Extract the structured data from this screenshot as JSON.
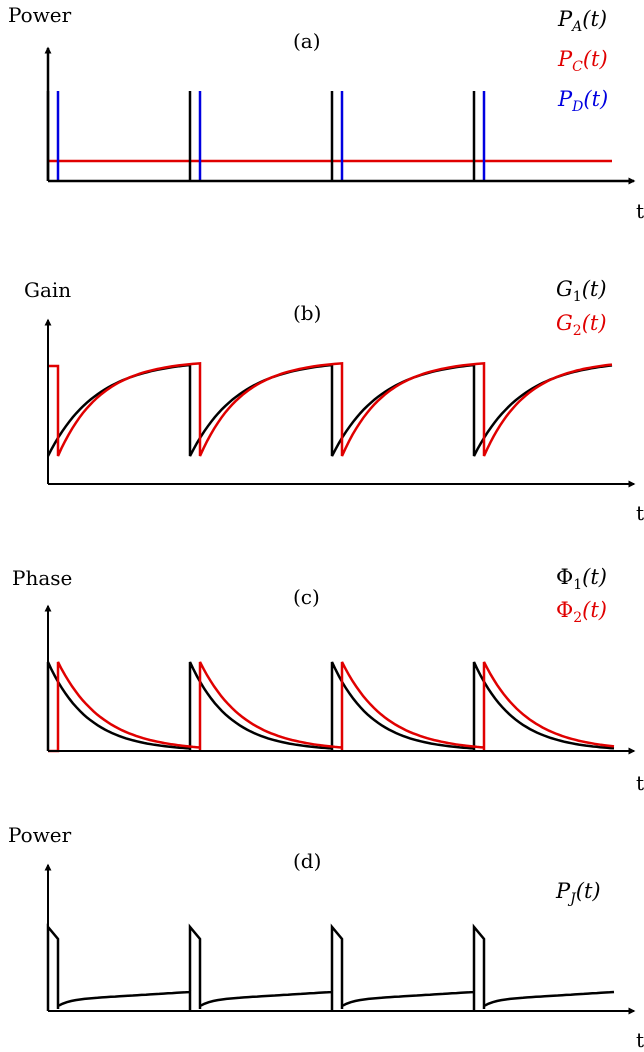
{
  "panels": [
    {
      "id": "a",
      "panel_label": "(a)",
      "y_axis_label": "Power",
      "x_axis_label": "t",
      "legend": [
        {
          "base": "P",
          "sub": "A",
          "arg": "(t)",
          "color": "#000000"
        },
        {
          "base": "P",
          "sub": "C",
          "arg": "(t)",
          "color": "#e00000"
        },
        {
          "base": "P",
          "sub": "D",
          "arg": "(t)",
          "color": "#0000e0"
        }
      ]
    },
    {
      "id": "b",
      "panel_label": "(b)",
      "y_axis_label": "Gain",
      "x_axis_label": "t",
      "legend": [
        {
          "base": "G",
          "sub": "1",
          "arg": "(t)",
          "color": "#000000"
        },
        {
          "base": "G",
          "sub": "2",
          "arg": "(t)",
          "color": "#e00000"
        }
      ]
    },
    {
      "id": "c",
      "panel_label": "(c)",
      "y_axis_label": "Phase",
      "x_axis_label": "t",
      "legend": [
        {
          "base": "Φ",
          "sub": "1",
          "arg": "(t)",
          "color": "#000000"
        },
        {
          "base": "Φ",
          "sub": "2",
          "arg": "(t)",
          "color": "#e00000"
        }
      ]
    },
    {
      "id": "d",
      "panel_label": "(d)",
      "y_axis_label": "Power",
      "x_axis_label": "t",
      "legend": [
        {
          "base": "P",
          "sub": "J",
          "arg": "(t)",
          "color": "#000000"
        }
      ]
    }
  ],
  "colors": {
    "axis": "#000000",
    "black_trace": "#000000",
    "red_trace": "#e00000",
    "blue_trace": "#0000e0"
  }
}
